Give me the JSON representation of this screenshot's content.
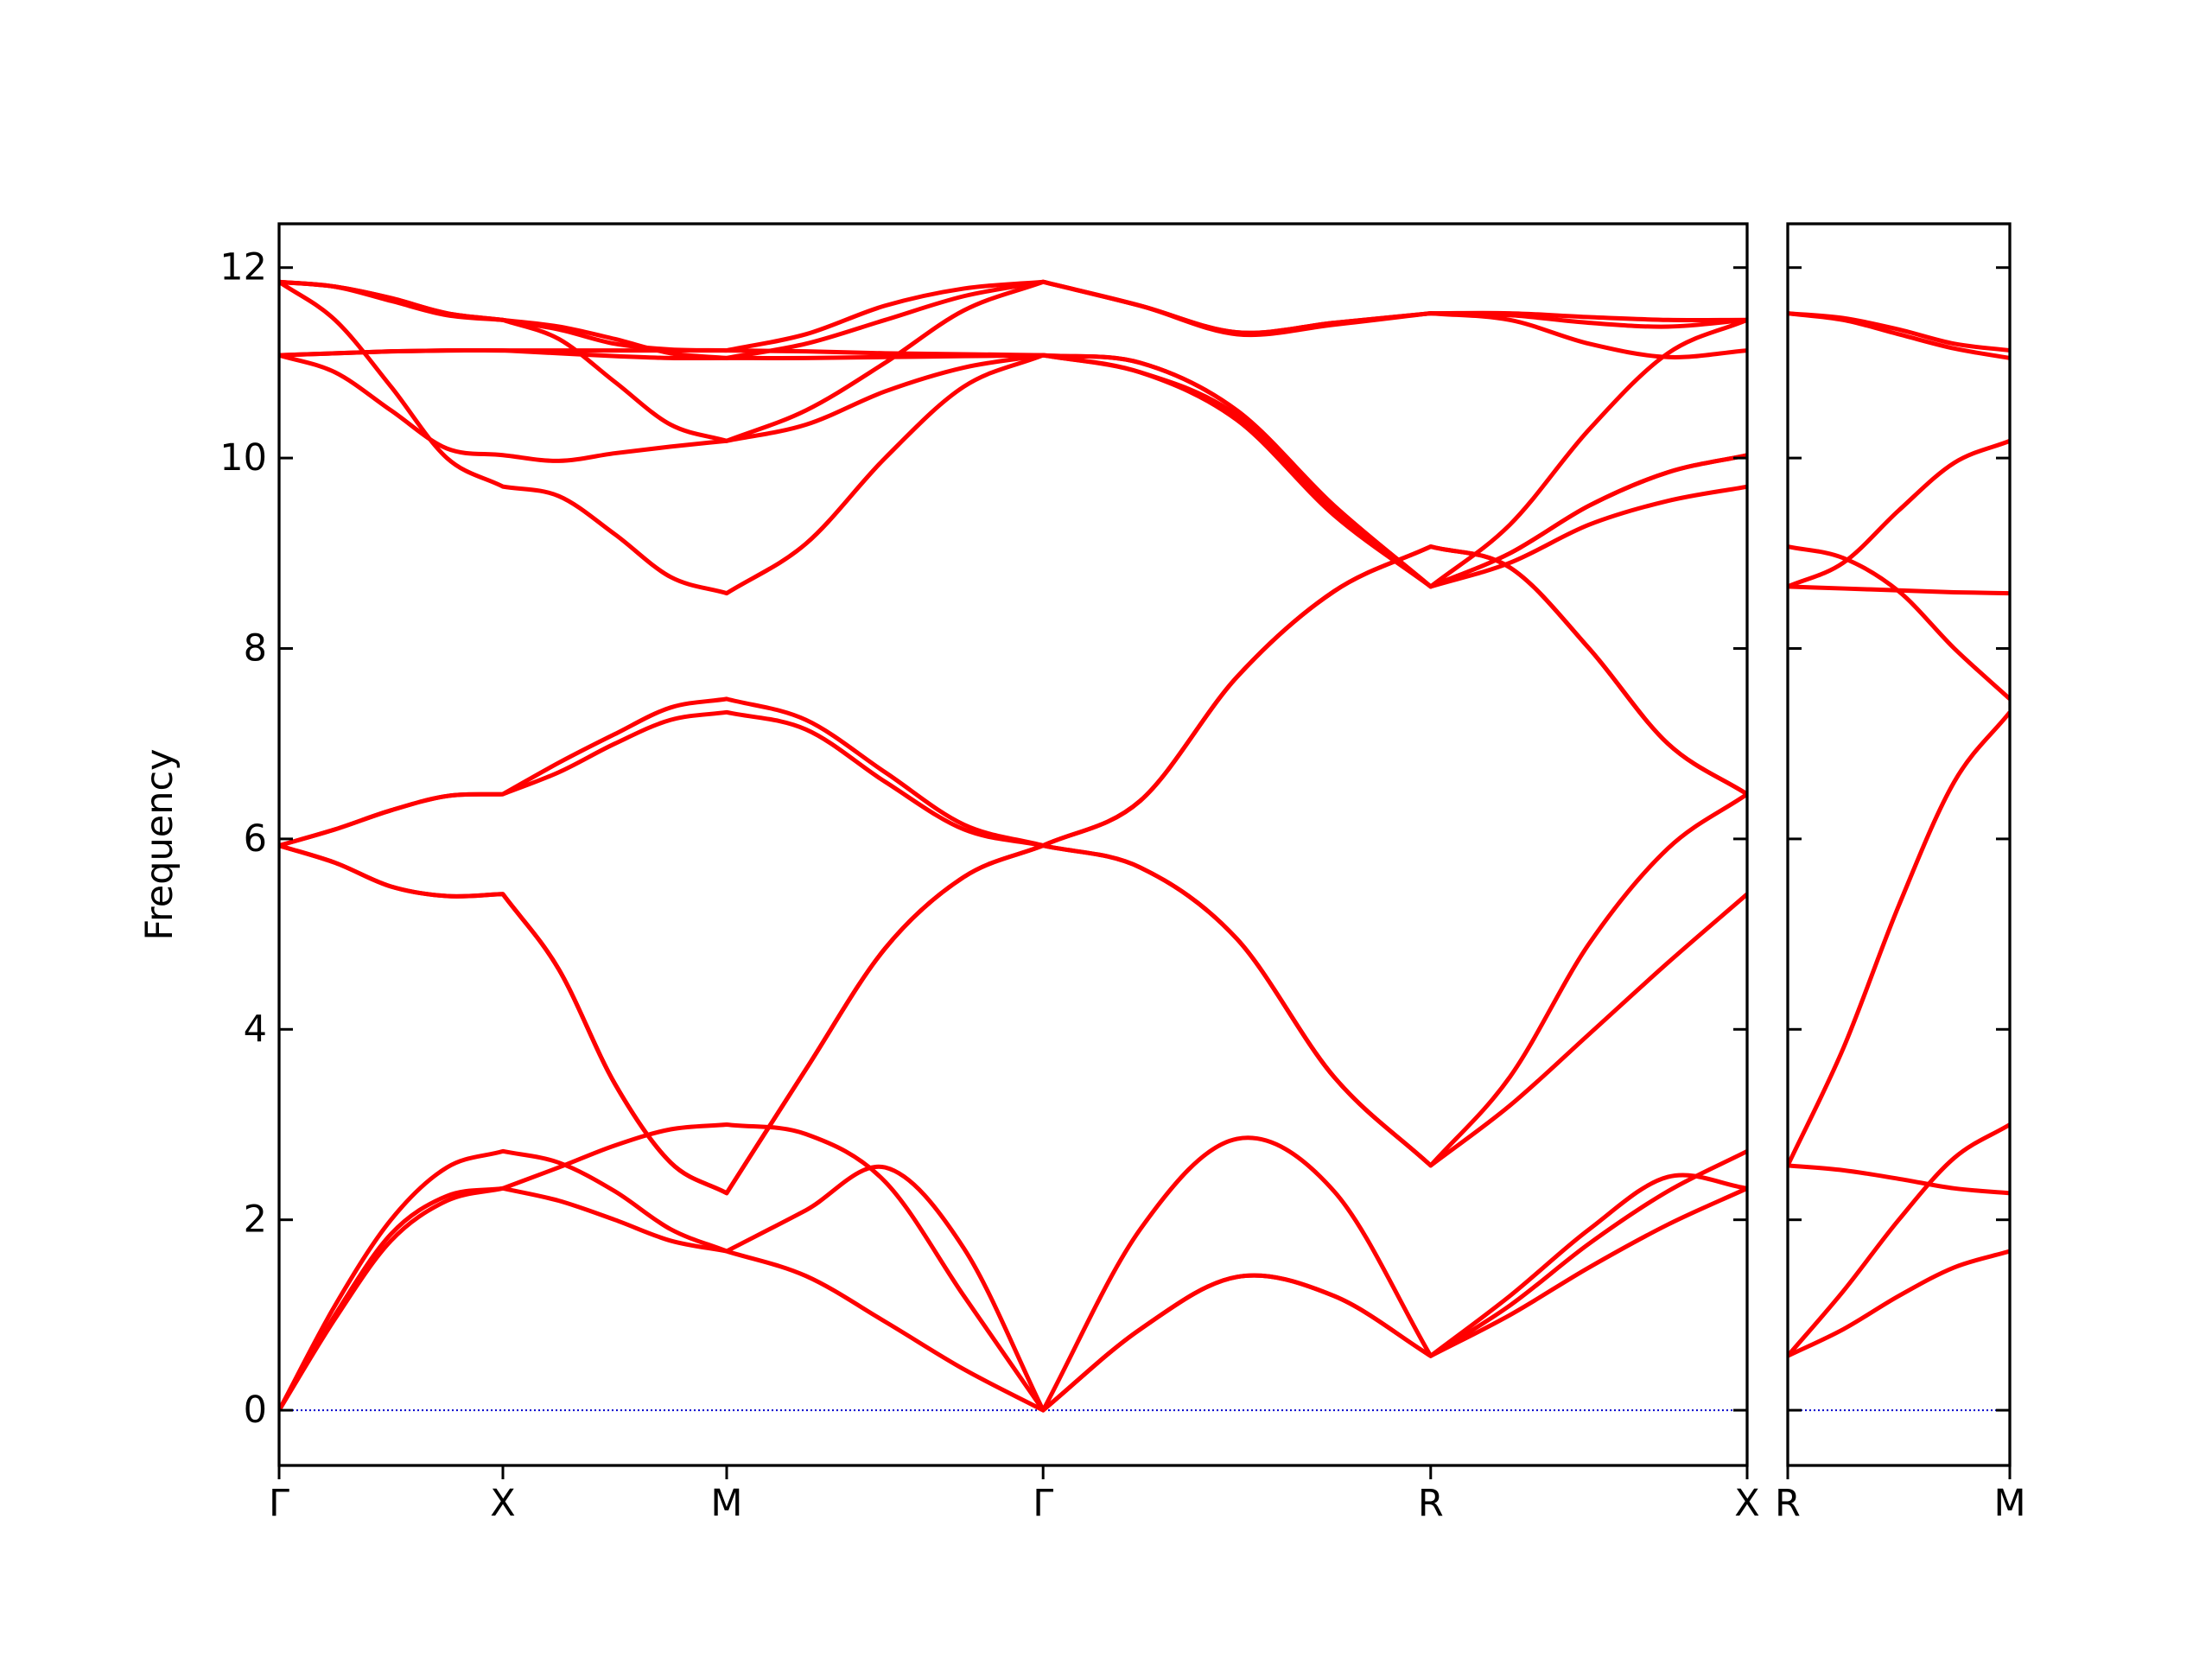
{
  "chart_data": [
    {
      "type": "line",
      "ylabel": "Frequency",
      "color": "#ff0000",
      "x": [
        0,
        0.125,
        0.25,
        0.375,
        0.5,
        0.625,
        0.75,
        0.875,
        1,
        1.177,
        1.354,
        1.53,
        1.707,
        1.924,
        2.14,
        2.357,
        2.573,
        2.75,
        2.927,
        3.103,
        3.28
      ],
      "xlim": [
        0,
        3.28
      ],
      "xticks": [
        {
          "value": 0,
          "label": "Γ"
        },
        {
          "value": 0.5,
          "label": "X"
        },
        {
          "value": 1,
          "label": "M"
        },
        {
          "value": 1.707,
          "label": "Γ"
        },
        {
          "value": 2.573,
          "label": "R"
        },
        {
          "value": 3.28,
          "label": "X"
        }
      ],
      "ylim": [
        -0.58,
        12.46
      ],
      "yticks": [
        0,
        2,
        4,
        6,
        8,
        10,
        12
      ],
      "show_ytick_labels": true,
      "hline": {
        "value": 0,
        "color": "#0000cd"
      },
      "series": [
        {
          "values": [
            0,
            0.96,
            1.78,
            2.2,
            2.33,
            2.2,
            2.0,
            1.78,
            1.67,
            1.41,
            0.93,
            0.43,
            0,
            0.85,
            1.4,
            1.2,
            0.57,
            1.0,
            1.5,
            1.95,
            2.33
          ]
        },
        {
          "values": [
            0,
            1.0,
            1.85,
            2.25,
            2.33,
            2.55,
            2.78,
            2.95,
            3.0,
            2.9,
            2.4,
            1.2,
            0,
            0.85,
            1.4,
            1.2,
            0.57,
            1.2,
            1.9,
            2.45,
            2.33
          ]
        },
        {
          "values": [
            0,
            1.1,
            2.0,
            2.55,
            2.72,
            2.6,
            2.3,
            1.9,
            1.67,
            2.1,
            2.55,
            1.7,
            0,
            1.9,
            2.85,
            2.3,
            0.57,
            1.1,
            1.75,
            2.3,
            2.72
          ]
        },
        {
          "values": [
            5.93,
            5.75,
            5.5,
            5.4,
            5.42,
            4.63,
            3.43,
            2.6,
            2.28,
            3.58,
            4.85,
            5.6,
            5.93,
            5.7,
            4.95,
            3.5,
            2.57,
            3.2,
            3.95,
            4.7,
            5.42
          ]
        },
        {
          "values": [
            5.93,
            6.1,
            6.3,
            6.45,
            6.47,
            6.7,
            7.0,
            7.25,
            7.33,
            7.15,
            6.6,
            6.1,
            5.93,
            6.4,
            7.7,
            8.6,
            9.07,
            8.85,
            8.0,
            7.0,
            6.47
          ]
        },
        {
          "values": [
            5.93,
            6.1,
            6.3,
            6.45,
            6.47,
            6.8,
            7.1,
            7.38,
            7.47,
            7.25,
            6.7,
            6.15,
            5.93,
            6.4,
            7.7,
            8.6,
            9.07,
            8.85,
            8.0,
            7.0,
            6.47
          ]
        },
        {
          "values": [
            11.85,
            11.45,
            10.75,
            10.0,
            9.7,
            9.6,
            9.2,
            8.75,
            8.58,
            9.1,
            10.0,
            10.75,
            11.08,
            10.9,
            10.45,
            9.45,
            8.65,
            9.3,
            10.3,
            11.1,
            11.45
          ]
        },
        {
          "values": [
            11.08,
            10.9,
            10.5,
            10.1,
            10.03,
            9.97,
            10.05,
            10.12,
            10.18,
            10.35,
            10.7,
            10.95,
            11.08,
            10.9,
            10.4,
            9.4,
            8.65,
            9.0,
            9.5,
            9.85,
            10.03
          ]
        },
        {
          "values": [
            11.08,
            11.1,
            11.12,
            11.13,
            11.13,
            11.13,
            11.13,
            11.13,
            11.13,
            11.12,
            11.1,
            11.09,
            11.08,
            11.0,
            10.5,
            9.5,
            8.65,
            8.9,
            9.3,
            9.55,
            9.7
          ]
        },
        {
          "values": [
            11.85,
            11.8,
            11.68,
            11.52,
            11.45,
            11.38,
            11.25,
            11.1,
            11.05,
            11.2,
            11.45,
            11.7,
            11.85,
            11.6,
            11.32,
            11.42,
            11.52,
            11.45,
            11.2,
            11.06,
            11.13
          ]
        },
        {
          "values": [
            11.85,
            11.8,
            11.65,
            11.5,
            11.45,
            11.25,
            10.8,
            10.35,
            10.18,
            10.5,
            11.0,
            11.55,
            11.85,
            11.6,
            11.3,
            11.4,
            11.52,
            11.5,
            11.42,
            11.38,
            11.45
          ]
        },
        {
          "values": [
            11.08,
            11.1,
            11.12,
            11.13,
            11.13,
            11.1,
            11.07,
            11.05,
            11.05,
            11.05,
            11.06,
            11.07,
            11.08,
            11.0,
            10.5,
            9.5,
            8.65,
            9.0,
            9.5,
            9.85,
            10.03
          ]
        },
        {
          "values": [
            11.85,
            11.8,
            11.68,
            11.52,
            11.45,
            11.35,
            11.2,
            11.14,
            11.13,
            11.3,
            11.6,
            11.78,
            11.85,
            11.6,
            11.32,
            11.42,
            11.52,
            11.52,
            11.48,
            11.45,
            11.45
          ]
        },
        {
          "values": [
            5.93,
            5.75,
            5.5,
            5.4,
            5.42,
            4.63,
            3.43,
            2.6,
            2.28,
            3.58,
            4.85,
            5.6,
            5.93,
            5.7,
            4.95,
            3.5,
            2.57,
            3.5,
            4.9,
            5.9,
            6.47
          ]
        }
      ]
    },
    {
      "type": "line",
      "color": "#ff0000",
      "x": [
        0,
        0.125,
        0.25,
        0.375,
        0.5
      ],
      "xlim": [
        0,
        0.5
      ],
      "xticks": [
        {
          "value": 0,
          "label": "R"
        },
        {
          "value": 0.5,
          "label": "M"
        }
      ],
      "ylim": [
        -0.58,
        12.46
      ],
      "yticks": [
        0,
        2,
        4,
        6,
        8,
        10,
        12
      ],
      "show_ytick_labels": false,
      "hline": {
        "value": 0,
        "color": "#0000cd"
      },
      "series": [
        {
          "values": [
            0.57,
            0.85,
            1.2,
            1.5,
            1.67
          ]
        },
        {
          "values": [
            0.57,
            1.25,
            2.0,
            2.65,
            3.0
          ]
        },
        {
          "values": [
            2.57,
            2.52,
            2.43,
            2.33,
            2.28
          ]
        },
        {
          "values": [
            2.57,
            3.8,
            5.3,
            6.6,
            7.33
          ]
        },
        {
          "values": [
            9.07,
            8.95,
            8.6,
            8.0,
            7.47
          ]
        },
        {
          "values": [
            8.65,
            8.9,
            9.45,
            9.95,
            10.18
          ]
        },
        {
          "values": [
            8.65,
            8.63,
            8.61,
            8.59,
            8.58
          ]
        },
        {
          "values": [
            11.52,
            11.45,
            11.3,
            11.15,
            11.05
          ]
        },
        {
          "values": [
            11.52,
            11.47,
            11.35,
            11.2,
            11.13
          ]
        }
      ]
    }
  ]
}
